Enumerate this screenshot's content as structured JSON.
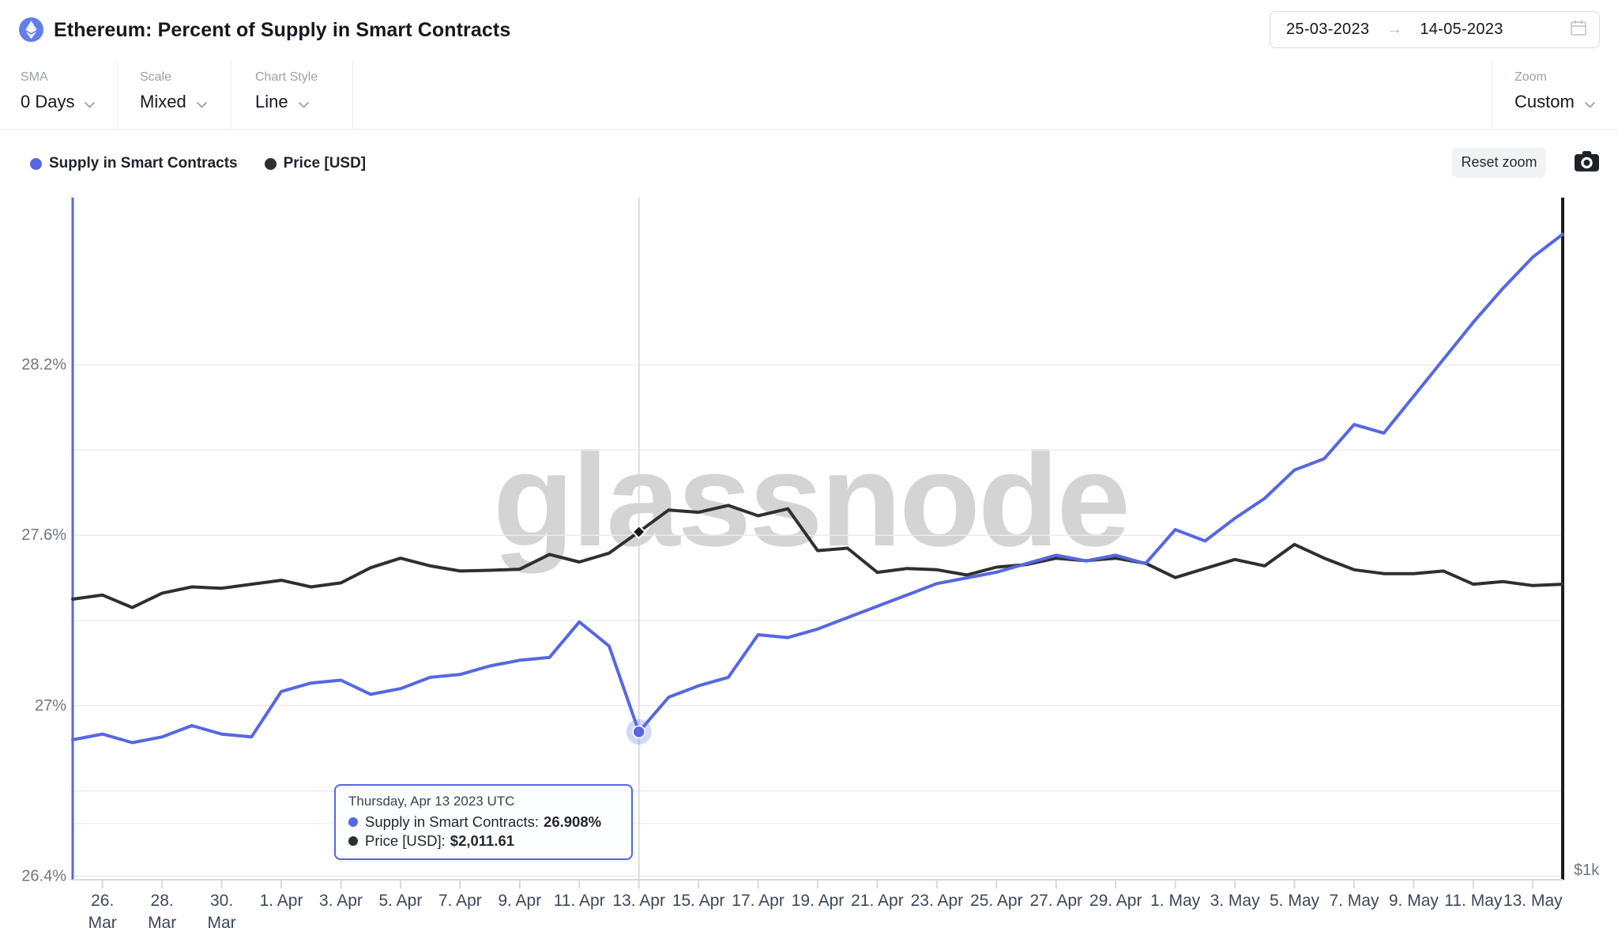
{
  "header": {
    "title": "Ethereum: Percent of Supply in Smart Contracts",
    "date_from": "25-03-2023",
    "date_arrow": "→",
    "date_to": "14-05-2023"
  },
  "toolbar": {
    "sma_label": "SMA",
    "sma_value": "0 Days",
    "scale_label": "Scale",
    "scale_value": "Mixed",
    "style_label": "Chart Style",
    "style_value": "Line",
    "zoom_label": "Zoom",
    "zoom_value": "Custom"
  },
  "legend": {
    "series1": "Supply in Smart Contracts",
    "series2": "Price [USD]",
    "reset_button": "Reset zoom"
  },
  "watermark": "glassnode",
  "tooltip": {
    "title": "Thursday, Apr 13 2023 UTC",
    "series1_label": "Supply in Smart Contracts:",
    "series1_value": "26.908%",
    "series2_label": "Price [USD]:",
    "series2_value": "$2,011.61"
  },
  "colors": {
    "supply": "#5767e1",
    "price": "#2e2f33",
    "grid": "#ececec",
    "grid_minor": "#f2f2f2",
    "axis_bottom": "#d8d8d8",
    "crosshair": "#d2d4d8",
    "x_label": "#3e4757",
    "y_label": "#70767f",
    "halo": "rgba(99,115,230,0.28)"
  },
  "chart_data": {
    "type": "line",
    "title": "Ethereum: Percent of Supply in Smart Contracts",
    "x_unit": "day",
    "grid": true,
    "legend_position": "top-left",
    "dates": [
      "2023-03-25",
      "2023-03-26",
      "2023-03-27",
      "2023-03-28",
      "2023-03-29",
      "2023-03-30",
      "2023-03-31",
      "2023-04-01",
      "2023-04-02",
      "2023-04-03",
      "2023-04-04",
      "2023-04-05",
      "2023-04-06",
      "2023-04-07",
      "2023-04-08",
      "2023-04-09",
      "2023-04-10",
      "2023-04-11",
      "2023-04-12",
      "2023-04-13",
      "2023-04-14",
      "2023-04-15",
      "2023-04-16",
      "2023-04-17",
      "2023-04-18",
      "2023-04-19",
      "2023-04-20",
      "2023-04-21",
      "2023-04-22",
      "2023-04-23",
      "2023-04-24",
      "2023-04-25",
      "2023-04-26",
      "2023-04-27",
      "2023-04-28",
      "2023-04-29",
      "2023-04-30",
      "2023-05-01",
      "2023-05-02",
      "2023-05-03",
      "2023-05-04",
      "2023-05-05",
      "2023-05-06",
      "2023-05-07",
      "2023-05-08",
      "2023-05-09",
      "2023-05-10",
      "2023-05-11",
      "2023-05-12",
      "2023-05-13",
      "2023-05-14"
    ],
    "series": [
      {
        "name": "Supply in Smart Contracts",
        "axis": "left",
        "unit": "%",
        "color": "#5767e1",
        "values": [
          26.88,
          26.9,
          26.87,
          26.89,
          26.93,
          26.9,
          26.89,
          27.05,
          27.08,
          27.09,
          27.04,
          27.06,
          27.1,
          27.11,
          27.14,
          27.16,
          27.17,
          27.295,
          27.21,
          26.908,
          27.03,
          27.07,
          27.1,
          27.25,
          27.24,
          27.27,
          27.31,
          27.35,
          27.39,
          27.43,
          27.45,
          27.47,
          27.5,
          27.53,
          27.51,
          27.53,
          27.5,
          27.62,
          27.58,
          27.66,
          27.73,
          27.83,
          27.87,
          27.99,
          27.96,
          28.09,
          28.22,
          28.35,
          28.47,
          28.58,
          28.66
        ]
      },
      {
        "name": "Price [USD]",
        "axis": "right",
        "unit": "USD",
        "scale": "log",
        "color": "#2e2f33",
        "values": [
          1750,
          1765,
          1720,
          1772,
          1795,
          1790,
          1805,
          1820,
          1795,
          1810,
          1868,
          1905,
          1875,
          1855,
          1858,
          1862,
          1920,
          1890,
          1925,
          2011.61,
          2105,
          2095,
          2125,
          2080,
          2110,
          1935,
          1945,
          1850,
          1865,
          1860,
          1840,
          1870,
          1880,
          1905,
          1895,
          1905,
          1885,
          1830,
          1865,
          1900,
          1875,
          1960,
          1905,
          1860,
          1845,
          1845,
          1855,
          1805,
          1815,
          1800,
          1805
        ]
      }
    ],
    "y_left": {
      "tick_labels": [
        "28.2%",
        "27.6%",
        "27%",
        "26.4%"
      ],
      "tick_values": [
        28.2,
        27.6,
        27.0,
        26.4
      ],
      "gridline_step": 0.3,
      "range": [
        26.4,
        28.8
      ]
    },
    "y_right": {
      "tick_labels": [
        "$1k"
      ],
      "tick_values": [
        1000
      ],
      "scale": "log"
    },
    "x_ticks": [
      {
        "l1": "26.",
        "l2": "Mar"
      },
      {
        "l1": "28.",
        "l2": "Mar"
      },
      {
        "l1": "30.",
        "l2": "Mar"
      },
      {
        "l1": "1. Apr"
      },
      {
        "l1": "3. Apr"
      },
      {
        "l1": "5. Apr"
      },
      {
        "l1": "7. Apr"
      },
      {
        "l1": "9. Apr"
      },
      {
        "l1": "11. Apr"
      },
      {
        "l1": "13. Apr"
      },
      {
        "l1": "15. Apr"
      },
      {
        "l1": "17. Apr"
      },
      {
        "l1": "19. Apr"
      },
      {
        "l1": "21. Apr"
      },
      {
        "l1": "23. Apr"
      },
      {
        "l1": "25. Apr"
      },
      {
        "l1": "27. Apr"
      },
      {
        "l1": "29. Apr"
      },
      {
        "l1": "1. May"
      },
      {
        "l1": "3. May"
      },
      {
        "l1": "5. May"
      },
      {
        "l1": "7. May"
      },
      {
        "l1": "9. May"
      },
      {
        "l1": "11. May"
      },
      {
        "l1": "13. May"
      }
    ],
    "highlight": {
      "index": 19,
      "date": "2023-04-13",
      "supply": 26.908,
      "price": 2011.61
    }
  }
}
